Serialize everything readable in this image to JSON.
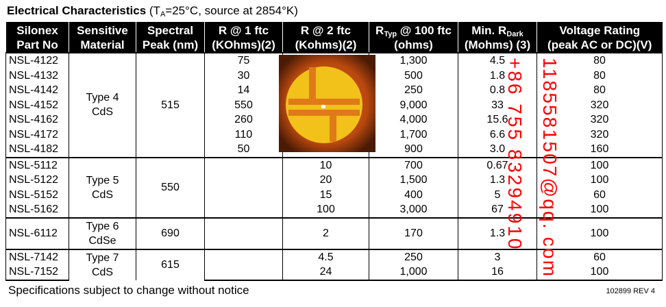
{
  "title": [
    {
      "text": "Electrical Characteristics",
      "bold": true
    },
    {
      "text": " (T"
    },
    {
      "sub": "A"
    },
    {
      "text": "=25°C, source at 2854°K)"
    }
  ],
  "header": {
    "columns": [
      {
        "line1": [
          {
            "text": "Silonex"
          }
        ],
        "line2": "Part No"
      },
      {
        "line1": [
          {
            "text": "Sensitive"
          }
        ],
        "line2": "Material"
      },
      {
        "line1": [
          {
            "text": "Spectral"
          }
        ],
        "line2": "Peak (nm)"
      },
      {
        "line1": [
          {
            "text": "R @ 1 ftc"
          }
        ],
        "line2": "(KOhms)(2)"
      },
      {
        "line1": [
          {
            "text": "R @ 2 ftc"
          }
        ],
        "line2": "(Kohms)(2)"
      },
      {
        "line1": [
          {
            "text": "R"
          },
          {
            "sub": "Typ"
          },
          {
            "text": " @ 100 ftc"
          }
        ],
        "line2": "(ohms)"
      },
      {
        "line1": [
          {
            "text": "Min. R"
          },
          {
            "sub": "Dark"
          }
        ],
        "line2": "(Mohms) (3)"
      },
      {
        "line1": [
          {
            "text": "Voltage Rating"
          }
        ],
        "line2": "(peak AC or DC)(V)"
      }
    ]
  },
  "groups": [
    {
      "material": [
        "Type 4",
        "CdS"
      ],
      "peak": "515",
      "rows": [
        [
          "NSL-4122",
          "75",
          null,
          "1,300",
          "4.5",
          "80"
        ],
        [
          "NSL-4132",
          "30",
          null,
          "500",
          "1.8",
          "80"
        ],
        [
          "NSL-4142",
          "14",
          null,
          "250",
          "0.8",
          "80"
        ],
        [
          "NSL-4152",
          "550",
          null,
          "9,000",
          "33",
          "320"
        ],
        [
          "NSL-4162",
          "260",
          null,
          "4,000",
          "15.6",
          "320"
        ],
        [
          "NSL-4172",
          "110",
          null,
          "1,700",
          "6.6",
          "320"
        ],
        [
          "NSL-4182",
          "50",
          null,
          "900",
          "3.0",
          "160"
        ]
      ]
    },
    {
      "material": [
        "Type 5",
        "CdS"
      ],
      "peak": "550",
      "rows": [
        [
          "NSL-5112",
          null,
          "10",
          "700",
          "0.67",
          "100"
        ],
        [
          "NSL-5122",
          null,
          "20",
          "1,500",
          "1.3",
          "100"
        ],
        [
          "NSL-5152",
          null,
          "15",
          "400",
          "5",
          "60"
        ],
        [
          "NSL-5162",
          null,
          "100",
          "3,000",
          "67",
          "100"
        ]
      ]
    },
    {
      "material": [
        "Type 6",
        "CdSe"
      ],
      "peak": "690",
      "rows": [
        [
          "NSL-6112",
          null,
          "2",
          "170",
          "1.3",
          "100"
        ]
      ]
    },
    {
      "material": [
        "Type 7",
        "CdS"
      ],
      "peak": "615",
      "rows": [
        [
          "NSL-7142",
          null,
          "4.5",
          "250",
          "3",
          "60"
        ],
        [
          "NSL-7152",
          null,
          "24",
          "1,000",
          "16",
          "100"
        ]
      ]
    }
  ],
  "watermark": [
    "+86 755 83294910",
    "1185581507@qq. com"
  ],
  "footer": {
    "note": "Specifications subject to change without notice",
    "revision": "102899 REV 4"
  }
}
